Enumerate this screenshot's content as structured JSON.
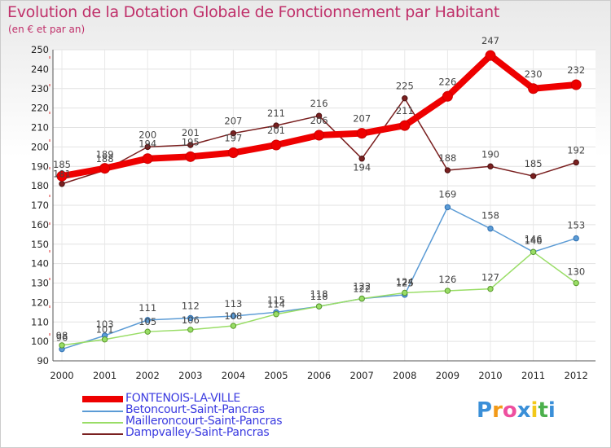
{
  "title": "Evolution de la Dotation Globale de Fonctionnement par Habitant",
  "subtitle": "(en € et par an)",
  "brand": {
    "text": "Proxiti",
    "colors": [
      "#3a8fd8",
      "#f29a18",
      "#ee4f9f",
      "#3a8fd8",
      "#f2c81a",
      "#4cb04c",
      "#3a8fd8"
    ]
  },
  "chart_data": {
    "type": "line",
    "categories": [
      "2000",
      "2001",
      "2002",
      "2003",
      "2004",
      "2005",
      "2006",
      "2007",
      "2008",
      "2009",
      "2010",
      "2011",
      "2012"
    ],
    "ylim": [
      90,
      250
    ],
    "yticks": [
      90,
      100,
      110,
      120,
      130,
      140,
      150,
      160,
      170,
      180,
      190,
      200,
      210,
      220,
      230,
      240,
      250
    ],
    "grid": true,
    "series": [
      {
        "name": "FONTENOIS-LA-VILLE",
        "color": "#ee0000",
        "values": [
          185,
          189,
          194,
          195,
          197,
          201,
          206,
          207,
          211,
          226,
          247,
          230,
          232
        ]
      },
      {
        "name": "Betoncourt-Saint-Pancras",
        "color": "#5b9bd5",
        "values": [
          96,
          103,
          111,
          112,
          113,
          115,
          118,
          122,
          124,
          169,
          158,
          146,
          153
        ]
      },
      {
        "name": "Mailleroncourt-Saint-Pancras",
        "color": "#99dd66",
        "values": [
          98,
          101,
          105,
          106,
          108,
          114,
          118,
          122,
          125,
          126,
          127,
          146,
          130
        ]
      },
      {
        "name": "Dampvalley-Saint-Pancras",
        "color": "#7a2020",
        "values": [
          181,
          188,
          200,
          201,
          207,
          211,
          216,
          194,
          225,
          188,
          190,
          185,
          192
        ]
      }
    ]
  }
}
